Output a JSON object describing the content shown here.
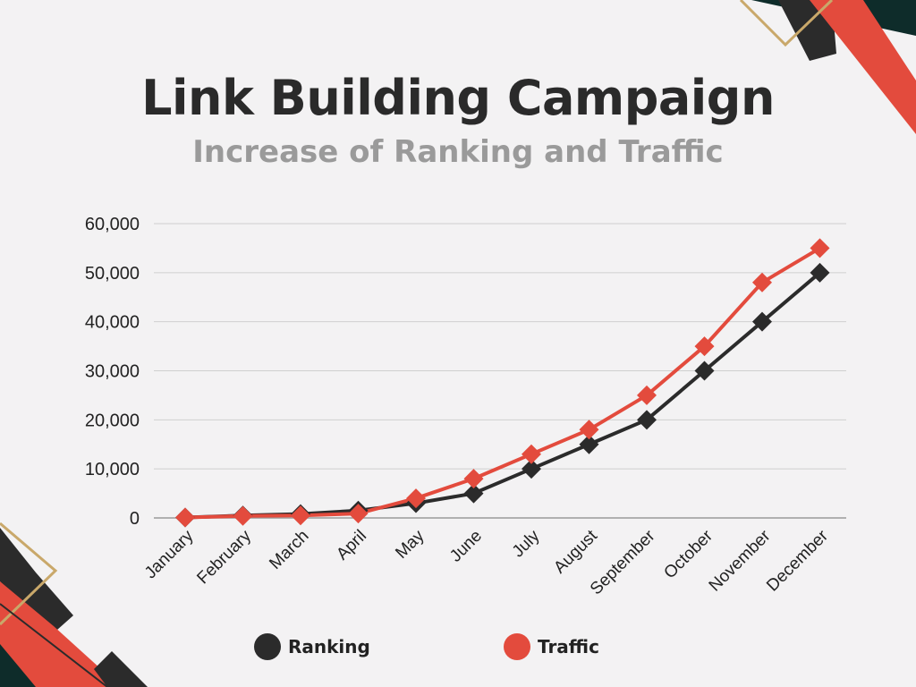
{
  "title": "Link Building Campaign",
  "subtitle": "Increase of Ranking and Traffic",
  "colors": {
    "background": "#f3f2f3",
    "ranking": "#2b2b2b",
    "traffic": "#e34b3d",
    "gridline": "#cfcfcf",
    "accent_dark": "#0e2c2a",
    "accent_gold": "#c9a86a"
  },
  "chart_data": {
    "type": "line",
    "title": "Link Building Campaign",
    "subtitle": "Increase of Ranking and Traffic",
    "xlabel": "",
    "ylabel": "",
    "categories": [
      "January",
      "February",
      "March",
      "April",
      "May",
      "June",
      "July",
      "August",
      "September",
      "October",
      "November",
      "December"
    ],
    "ylim": [
      0,
      60000
    ],
    "yticks": [
      "0",
      "10,000",
      "20,000",
      "30,000",
      "40,000",
      "50,000",
      "60,000"
    ],
    "ytick_values": [
      0,
      10000,
      20000,
      30000,
      40000,
      50000,
      60000
    ],
    "grid": true,
    "legend_position": "bottom",
    "marker": "diamond",
    "series": [
      {
        "name": "Ranking",
        "color": "#2b2b2b",
        "values": [
          100,
          500,
          800,
          1500,
          3000,
          5000,
          10000,
          15000,
          20000,
          30000,
          40000,
          50000
        ]
      },
      {
        "name": "Traffic",
        "color": "#e34b3d",
        "values": [
          100,
          400,
          500,
          900,
          4000,
          8000,
          13000,
          18000,
          25000,
          35000,
          48000,
          55000
        ]
      }
    ]
  }
}
